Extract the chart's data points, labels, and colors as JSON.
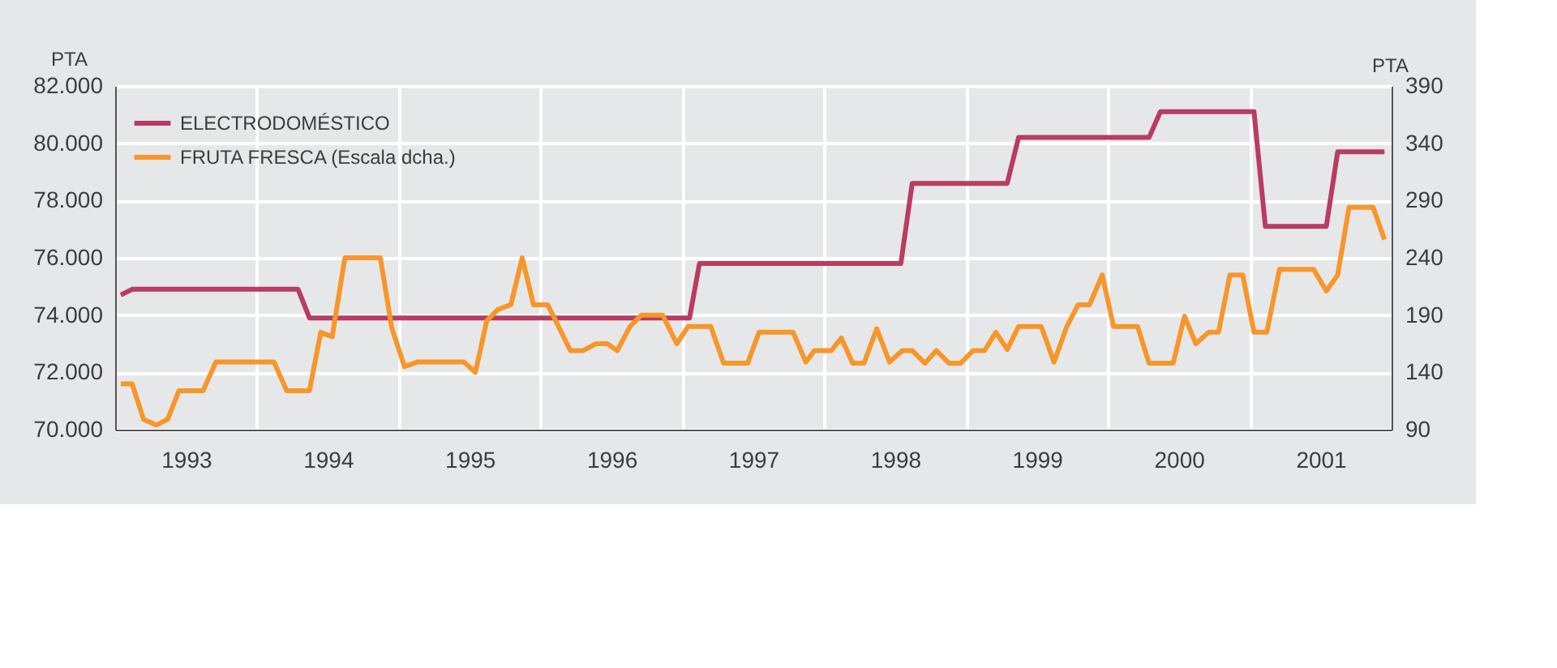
{
  "chart_data": {
    "type": "line",
    "ylabel": "PTA",
    "y2label": "PTA",
    "legend": "top left",
    "grid": true,
    "xlim": [
      1993,
      2002
    ],
    "xticks": [
      {
        "value": 1993.5,
        "label": "1993"
      },
      {
        "value": 1994,
        "label": null
      },
      {
        "value": 1994.5,
        "label": "1994"
      },
      {
        "value": 1995,
        "label": null
      },
      {
        "value": 1995.5,
        "label": "1995"
      },
      {
        "value": 1996,
        "label": null
      },
      {
        "value": 1996.5,
        "label": "1996"
      },
      {
        "value": 1997,
        "label": null
      },
      {
        "value": 1997.5,
        "label": "1997"
      },
      {
        "value": 1998,
        "label": null
      },
      {
        "value": 1998.5,
        "label": "1998"
      },
      {
        "value": 1999,
        "label": null
      },
      {
        "value": 1999.5,
        "label": "1999"
      },
      {
        "value": 2000,
        "label": null
      },
      {
        "value": 2000.5,
        "label": "2000"
      },
      {
        "value": 2001,
        "label": null
      },
      {
        "value": 2001.5,
        "label": "2001"
      }
    ],
    "ylim": [
      70000,
      82000
    ],
    "yticks": [
      {
        "value": 70000,
        "label": "70.000"
      },
      {
        "value": 72000,
        "label": "72.000"
      },
      {
        "value": 74000,
        "label": "74.000"
      },
      {
        "value": 76000,
        "label": "76.000"
      },
      {
        "value": 78000,
        "label": "78.000"
      },
      {
        "value": 80000,
        "label": "80.000"
      },
      {
        "value": 82000,
        "label": "82.000"
      }
    ],
    "y2lim": [
      90,
      390
    ],
    "y2ticks": [
      90,
      140,
      190,
      240,
      290,
      340,
      390
    ],
    "series": [
      {
        "name": "ELECTRODOMÉSTICO",
        "color": "#b83c63",
        "x": [
          1993.04,
          1993.12,
          1994.29,
          1994.37,
          1997.05,
          1997.12,
          1998.54,
          1998.62,
          1999.29,
          1999.37,
          2000.29,
          2000.37,
          2001.03,
          2001.11,
          2001.54,
          2001.62,
          2001.95
        ],
        "values": [
          74700,
          74900,
          74900,
          73900,
          73900,
          75800,
          75800,
          78600,
          78600,
          80200,
          80200,
          81100,
          81100,
          77100,
          77100,
          79700,
          79700
        ]
      },
      {
        "name": "FRUTA FRESCA (Escala dcha.)",
        "color": "#f7962a",
        "axis": "y2",
        "x": [
          1993.04,
          1993.12,
          1993.2,
          1993.29,
          1993.37,
          1993.45,
          1993.62,
          1993.71,
          1994.12,
          1994.21,
          1994.37,
          1994.45,
          1994.53,
          1994.62,
          1994.87,
          1994.95,
          1995.04,
          1995.13,
          1995.46,
          1995.54,
          1995.62,
          1995.7,
          1995.79,
          1995.87,
          1995.95,
          1996.05,
          1996.21,
          1996.3,
          1996.39,
          1996.47,
          1996.54,
          1996.63,
          1996.71,
          1996.86,
          1996.96,
          1997.04,
          1997.2,
          1997.29,
          1997.46,
          1997.54,
          1997.78,
          1997.87,
          1997.93,
          1998.05,
          1998.12,
          1998.2,
          1998.28,
          1998.37,
          1998.46,
          1998.55,
          1998.62,
          1998.71,
          1998.79,
          1998.88,
          1998.96,
          1999.05,
          1999.13,
          1999.21,
          1999.29,
          1999.37,
          1999.53,
          1999.62,
          1999.71,
          1999.79,
          1999.87,
          1999.96,
          2000.04,
          2000.21,
          2000.29,
          2000.46,
          2000.54,
          2000.62,
          2000.71,
          2000.78,
          2000.86,
          2000.95,
          2001.03,
          2001.12,
          2001.21,
          2001.45,
          2001.54,
          2001.62,
          2001.7,
          2001.87,
          2001.95
        ],
        "values": [
          130,
          130,
          99,
          94,
          99,
          124,
          124,
          149,
          149,
          124,
          124,
          175,
          171,
          240,
          240,
          179,
          145,
          149,
          149,
          140,
          185,
          195,
          199,
          240,
          199,
          199,
          159,
          159,
          165,
          165,
          159,
          180,
          190,
          190,
          165,
          180,
          180,
          148,
          148,
          175,
          175,
          149,
          159,
          159,
          170,
          148,
          148,
          178,
          149,
          159,
          159,
          148,
          159,
          148,
          148,
          159,
          159,
          175,
          160,
          180,
          180,
          149,
          180,
          199,
          199,
          225,
          180,
          180,
          148,
          148,
          189,
          165,
          175,
          175,
          225,
          225,
          175,
          175,
          230,
          230,
          211,
          225,
          284,
          284,
          256
        ]
      }
    ]
  }
}
